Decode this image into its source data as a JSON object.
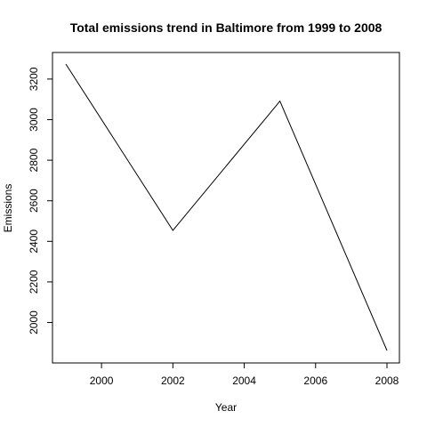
{
  "chart_data": {
    "type": "line",
    "title": "Total emissions trend in Baltimore from 1999 to 2008",
    "xlabel": "Year",
    "ylabel": "Emissions",
    "x": [
      1999,
      2002,
      2005,
      2008
    ],
    "series": [
      {
        "values": [
          3274,
          2454,
          3091,
          1862
        ]
      }
    ],
    "xticks": [
      2000,
      2002,
      2004,
      2006,
      2008
    ],
    "yticks": [
      2000,
      2200,
      2400,
      2600,
      2800,
      3000,
      3200
    ],
    "xlim": [
      1999,
      2008
    ],
    "ylim": [
      1862,
      3274
    ],
    "grid": false,
    "colors": {
      "line": "#000000",
      "axis": "#000000"
    }
  }
}
